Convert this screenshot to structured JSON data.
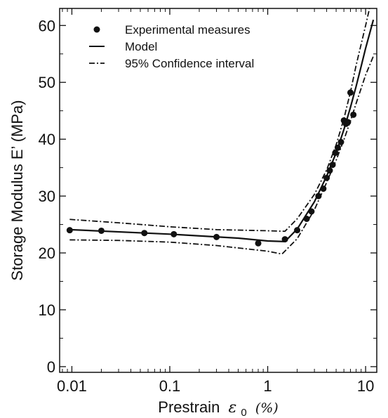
{
  "chart_data": {
    "type": "scatter",
    "xscale": "log",
    "xlim": [
      0.0075,
      13
    ],
    "ylim": [
      -1,
      63
    ],
    "xticks": [
      {
        "value": 0.01,
        "label": "0.01"
      },
      {
        "value": 0.1,
        "label": "0.1"
      },
      {
        "value": 1,
        "label": "1"
      },
      {
        "value": 10,
        "label": "10"
      }
    ],
    "yticks": [
      {
        "value": 0,
        "label": "0"
      },
      {
        "value": 10,
        "label": "10"
      },
      {
        "value": 20,
        "label": "20"
      },
      {
        "value": 30,
        "label": "30"
      },
      {
        "value": 40,
        "label": "40"
      },
      {
        "value": 50,
        "label": "50"
      },
      {
        "value": 60,
        "label": "60"
      }
    ],
    "xlabel": "Prestrain",
    "xlabel_symbol": "ε",
    "xlabel_subscript": "0",
    "xlabel_unit": "(%)",
    "ylabel": "Storage Modulus E’ (MPa)",
    "legend_position": "top-left",
    "grid": false,
    "series": [
      {
        "name": "Experimental measures",
        "style": "markers",
        "points": [
          [
            0.0095,
            24.0
          ],
          [
            0.02,
            23.9
          ],
          [
            0.055,
            23.5
          ],
          [
            0.11,
            23.3
          ],
          [
            0.3,
            22.8
          ],
          [
            0.8,
            21.7
          ],
          [
            1.5,
            22.4
          ],
          [
            2.0,
            24.0
          ],
          [
            2.5,
            26.0
          ],
          [
            2.8,
            27.3
          ],
          [
            3.3,
            30.0
          ],
          [
            3.7,
            31.3
          ],
          [
            4.0,
            33.2
          ],
          [
            4.3,
            34.5
          ],
          [
            4.6,
            35.5
          ],
          [
            4.9,
            37.6
          ],
          [
            5.2,
            38.5
          ],
          [
            5.6,
            39.5
          ],
          [
            6.0,
            43.3
          ],
          [
            6.3,
            42.7
          ],
          [
            6.6,
            43.0
          ],
          [
            7.0,
            48.2
          ],
          [
            7.5,
            44.3
          ]
        ]
      },
      {
        "name": "Model",
        "style": "solid",
        "points": [
          [
            0.0095,
            24.1
          ],
          [
            0.1,
            23.3
          ],
          [
            0.5,
            22.6
          ],
          [
            1.0,
            22.1
          ],
          [
            1.5,
            22.0
          ],
          [
            2.0,
            24.2
          ],
          [
            3.0,
            29.0
          ],
          [
            4.0,
            33.5
          ],
          [
            5.0,
            37.6
          ],
          [
            6.0,
            41.7
          ],
          [
            7.0,
            45.6
          ],
          [
            8.0,
            49.3
          ],
          [
            9.0,
            52.8
          ],
          [
            10.0,
            56.0
          ],
          [
            12.0,
            61.0
          ]
        ]
      },
      {
        "name": "95% Confidence interval",
        "style": "dashdot",
        "upper": [
          [
            0.0095,
            25.9
          ],
          [
            0.03,
            25.3
          ],
          [
            0.1,
            24.6
          ],
          [
            0.3,
            24.1
          ],
          [
            1.0,
            23.9
          ],
          [
            1.5,
            23.8
          ],
          [
            2.0,
            26.0
          ],
          [
            3.0,
            30.3
          ],
          [
            4.0,
            34.6
          ],
          [
            5.0,
            39.0
          ],
          [
            6.0,
            43.6
          ],
          [
            7.0,
            48.3
          ],
          [
            8.0,
            53.0
          ],
          [
            10.0,
            60.0
          ],
          [
            12.0,
            66.0
          ]
        ],
        "lower": [
          [
            0.0095,
            22.3
          ],
          [
            0.03,
            22.2
          ],
          [
            0.1,
            21.9
          ],
          [
            0.3,
            21.3
          ],
          [
            1.0,
            20.3
          ],
          [
            1.4,
            19.8
          ],
          [
            2.0,
            22.5
          ],
          [
            3.0,
            27.6
          ],
          [
            4.0,
            32.4
          ],
          [
            5.0,
            36.3
          ],
          [
            6.0,
            39.9
          ],
          [
            7.0,
            43.2
          ],
          [
            8.0,
            46.3
          ],
          [
            10.0,
            51.3
          ],
          [
            12.0,
            54.6
          ]
        ]
      }
    ]
  }
}
